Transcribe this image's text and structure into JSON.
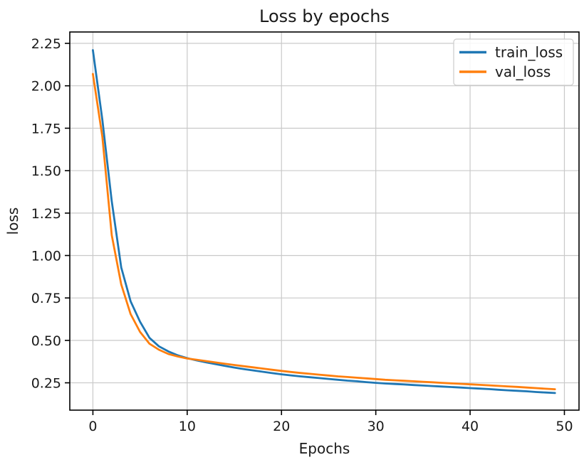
{
  "chart_data": {
    "type": "line",
    "title": "Loss by epochs",
    "xlabel": "Epochs",
    "ylabel": "loss",
    "xlim": [
      -2.45,
      51.55
    ],
    "ylim": [
      0.089,
      2.317
    ],
    "x_ticks": [
      0,
      10,
      20,
      30,
      40,
      50
    ],
    "y_ticks": [
      0.25,
      0.5,
      0.75,
      1.0,
      1.25,
      1.5,
      1.75,
      2.0,
      2.25
    ],
    "grid": true,
    "grid_color": "#c9c9c9",
    "spine_color": "#000000",
    "legend": {
      "position": "upper right"
    },
    "x": [
      0,
      1,
      2,
      3,
      4,
      5,
      6,
      7,
      8,
      9,
      10,
      11,
      12,
      13,
      14,
      15,
      16,
      17,
      18,
      19,
      20,
      21,
      22,
      23,
      24,
      25,
      26,
      27,
      28,
      29,
      30,
      31,
      32,
      33,
      34,
      35,
      36,
      37,
      38,
      39,
      40,
      41,
      42,
      43,
      44,
      45,
      46,
      47,
      48,
      49
    ],
    "series": [
      {
        "name": "train_loss",
        "color": "#1f77b4",
        "values": [
          2.21,
          1.8,
          1.32,
          0.93,
          0.73,
          0.61,
          0.515,
          0.465,
          0.435,
          0.412,
          0.395,
          0.382,
          0.371,
          0.36,
          0.35,
          0.34,
          0.331,
          0.323,
          0.315,
          0.307,
          0.3,
          0.294,
          0.288,
          0.283,
          0.278,
          0.273,
          0.268,
          0.263,
          0.259,
          0.254,
          0.25,
          0.246,
          0.243,
          0.24,
          0.237,
          0.234,
          0.231,
          0.228,
          0.225,
          0.222,
          0.219,
          0.216,
          0.213,
          0.209,
          0.206,
          0.203,
          0.2,
          0.196,
          0.193,
          0.19
        ]
      },
      {
        "name": "val_loss",
        "color": "#ff7f0e",
        "values": [
          2.07,
          1.7,
          1.12,
          0.83,
          0.655,
          0.55,
          0.48,
          0.445,
          0.42,
          0.405,
          0.393,
          0.386,
          0.378,
          0.37,
          0.362,
          0.355,
          0.348,
          0.341,
          0.334,
          0.327,
          0.32,
          0.314,
          0.308,
          0.303,
          0.298,
          0.293,
          0.288,
          0.284,
          0.28,
          0.276,
          0.272,
          0.268,
          0.265,
          0.262,
          0.259,
          0.256,
          0.253,
          0.25,
          0.247,
          0.244,
          0.241,
          0.238,
          0.235,
          0.232,
          0.229,
          0.226,
          0.222,
          0.219,
          0.215,
          0.212
        ]
      }
    ]
  }
}
